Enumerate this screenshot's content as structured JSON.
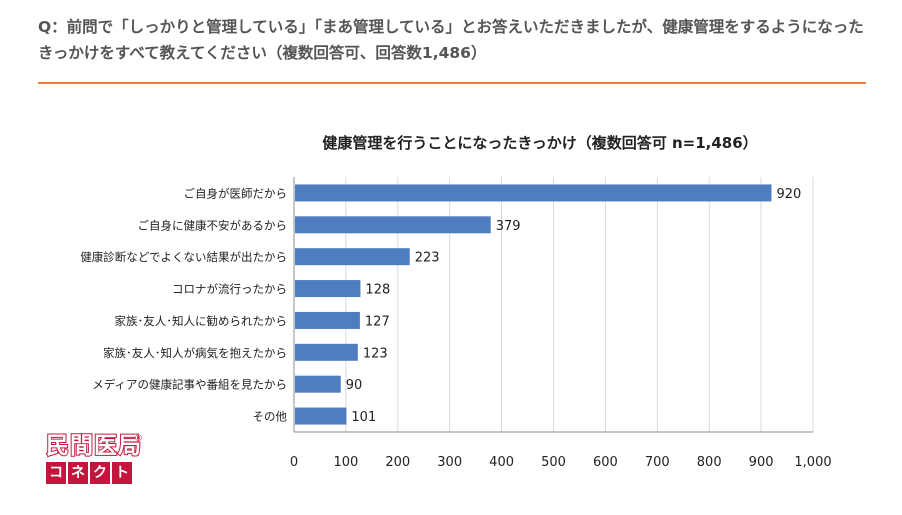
{
  "question": "Q：前問で「しっかりと管理している」「まあ管理している」とお答えいただきましたが、健康管理をするようになったきっかけをすべて教えてください（複数回答可、回答数1,486）",
  "brand": {
    "name_top": "民間医局",
    "name_bottom": [
      "コ",
      "ネ",
      "ク",
      "ト"
    ],
    "color": "#c4163d"
  },
  "colors": {
    "bar": "#4f7ec0",
    "accent_rule": "#ef7a3b"
  },
  "chart_data": {
    "type": "bar",
    "orientation": "horizontal",
    "title": "健康管理を行うことになったきっかけ（複数回答可 n=1,486）",
    "categories": [
      "ご自身が医師だから",
      "ご自身に健康不安があるから",
      "健康診断などでよくない結果が出たから",
      "コロナが流行ったから",
      "家族･友人･知人に勧められたから",
      "家族･友人･知人が病気を抱えたから",
      "メディアの健康記事や番組を見たから",
      "その他"
    ],
    "values": [
      920,
      379,
      223,
      128,
      127,
      123,
      90,
      101
    ],
    "data_labels": [
      "920",
      "379",
      "223",
      "128",
      "127",
      "123",
      "90",
      "101"
    ],
    "xlim": [
      0,
      1000
    ],
    "xticks": [
      0,
      100,
      200,
      300,
      400,
      500,
      600,
      700,
      800,
      900,
      1000
    ],
    "xtick_labels": [
      "0",
      "100",
      "200",
      "300",
      "400",
      "500",
      "600",
      "700",
      "800",
      "900",
      "1,000"
    ],
    "grid": true,
    "legend": "none"
  }
}
